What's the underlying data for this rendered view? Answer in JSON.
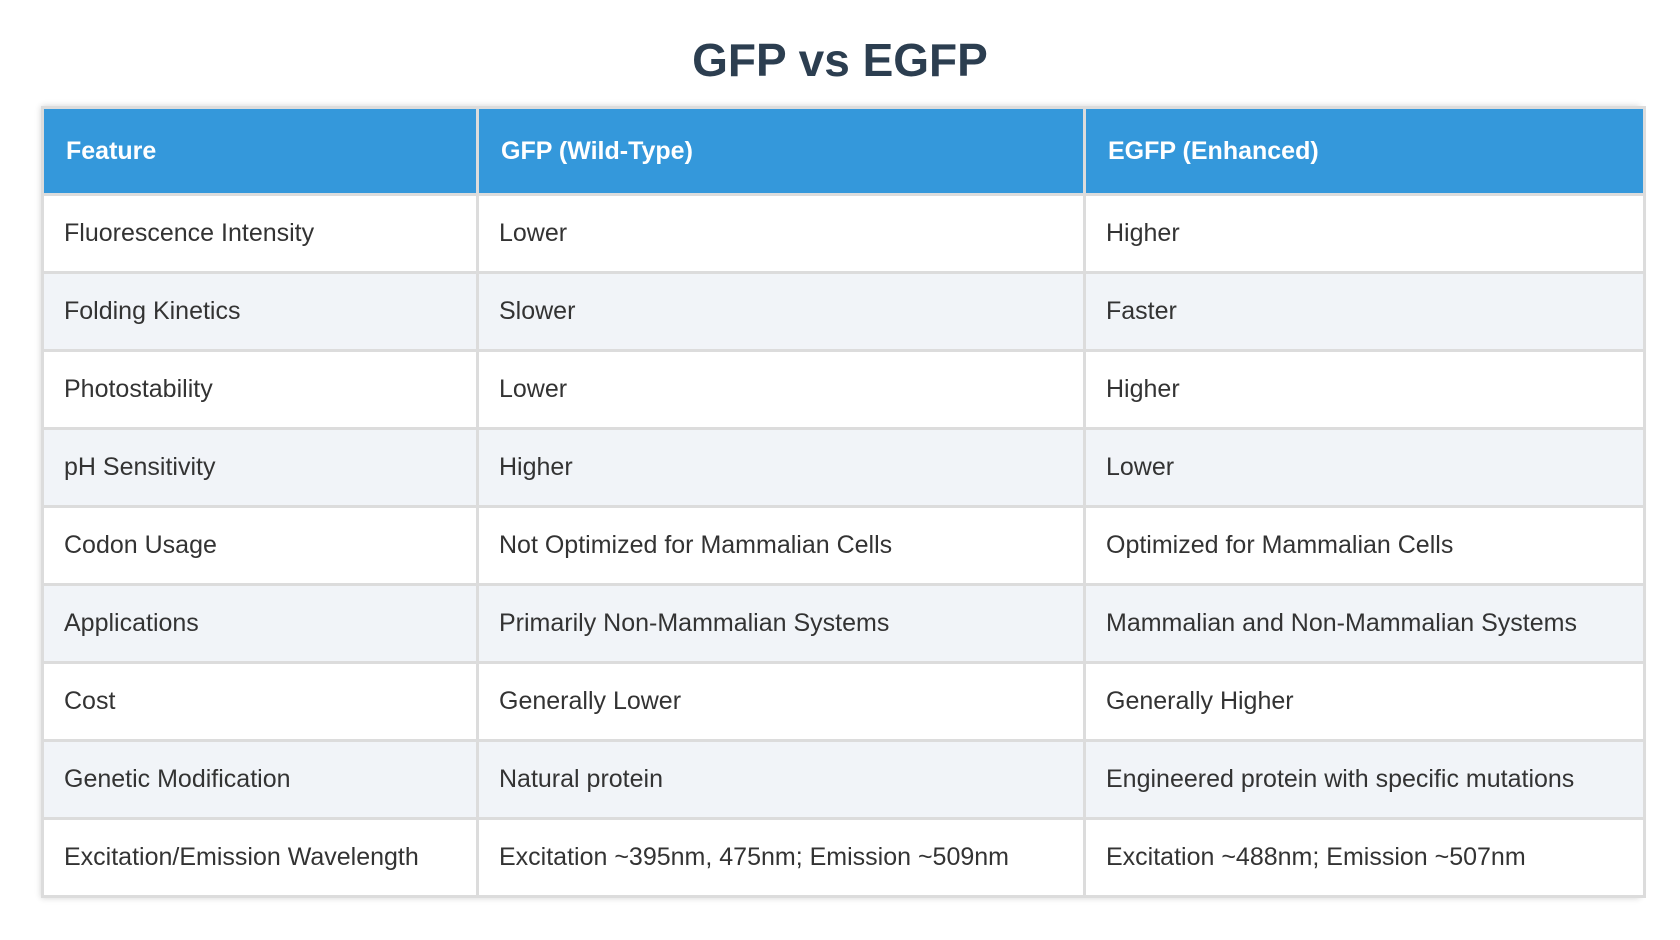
{
  "title": "GFP vs EGFP",
  "colors": {
    "header_bg": "#3498db",
    "header_text": "#ffffff",
    "title_text": "#2c3e50",
    "row_alt_bg": "#f1f4f8"
  },
  "table": {
    "headers": [
      "Feature",
      "GFP (Wild-Type)",
      "EGFP (Enhanced)"
    ],
    "rows": [
      [
        "Fluorescence Intensity",
        "Lower",
        "Higher"
      ],
      [
        "Folding Kinetics",
        "Slower",
        "Faster"
      ],
      [
        "Photostability",
        "Lower",
        "Higher"
      ],
      [
        "pH Sensitivity",
        "Higher",
        "Lower"
      ],
      [
        "Codon Usage",
        "Not Optimized for Mammalian Cells",
        "Optimized for Mammalian Cells"
      ],
      [
        "Applications",
        "Primarily Non-Mammalian Systems",
        "Mammalian and Non-Mammalian Systems"
      ],
      [
        "Cost",
        "Generally Lower",
        "Generally Higher"
      ],
      [
        "Genetic Modification",
        "Natural protein",
        "Engineered protein with specific mutations"
      ],
      [
        "Excitation/Emission Wavelength",
        "Excitation ~395nm, 475nm; Emission ~509nm",
        "Excitation ~488nm; Emission ~507nm"
      ]
    ]
  }
}
